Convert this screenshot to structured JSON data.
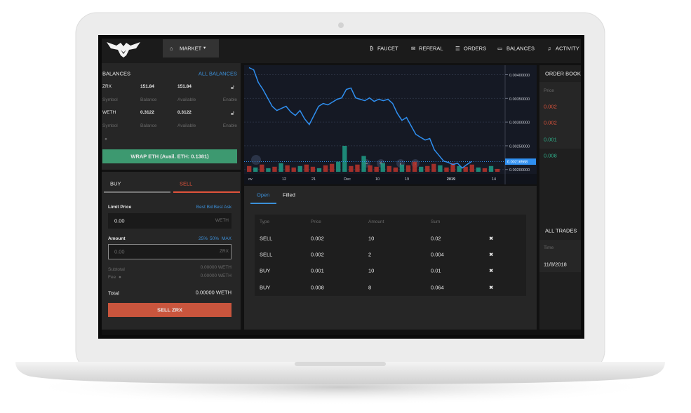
{
  "nav": {
    "market": "MARKET",
    "items": [
      "FAUCET",
      "REFERAL",
      "ORDERS",
      "BALANCES",
      "ACTIVITY"
    ]
  },
  "balances": {
    "title": "BALANCES",
    "link": "ALL BALANCES",
    "columns": [
      "Symbol",
      "Balance",
      "Available",
      "Enable"
    ],
    "rows": [
      {
        "symbol": "ZRX",
        "balance": "151.84",
        "available": "151.84"
      },
      {
        "symbol": "WETH",
        "balance": "0.3122",
        "available": "0.3122"
      }
    ],
    "wrap_button": "WRAP ETH (Avail. ETH: 0.1381)"
  },
  "trade_form": {
    "tabs": [
      "BUY",
      "SELL"
    ],
    "limit_price": "Limit Price",
    "best_bid": "Best Bid",
    "best_ask": "Best Ask",
    "price_value": "0.00",
    "price_unit": "WETH",
    "amount": "Amount",
    "shortcuts": [
      "25%",
      "50%",
      "MAX"
    ],
    "amount_value": "0.00",
    "amount_unit": "ZRX",
    "subtotal": "Subtotal",
    "subtotal_value": "0.00000 WETH",
    "fee": "Fee",
    "fee_value": "0.00000 WETH",
    "total": "Total",
    "total_value": "0.00000 WETH",
    "submit": "SELL ZRX"
  },
  "chart_data": {
    "type": "line",
    "color": "#2f8ff0",
    "up_color": "#1f9c86",
    "down_color": "#b8342c",
    "values": [
      0.004148,
      0.004104,
      0.003837,
      0.003689,
      0.003511,
      0.003333,
      0.003244,
      0.003289,
      0.003333,
      0.003215,
      0.003141,
      0.003244,
      0.003067,
      0.002948,
      0.003141,
      0.003333,
      0.003393,
      0.003363,
      0.003422,
      0.003481,
      0.003511,
      0.003689,
      0.003719,
      0.003511,
      0.003481,
      0.003452,
      0.003511,
      0.003437,
      0.003481,
      0.003452,
      0.003481,
      0.003393,
      0.003185,
      0.003037,
      0.003096,
      0.002919,
      0.002741,
      0.002681,
      0.002622,
      0.002652,
      0.002415,
      0.002296,
      0.002178,
      0.002148,
      0.002104,
      0.002133,
      0.00203,
      0.002104,
      0.00216568
    ],
    "volume_up": [
      null,
      6,
      null,
      5,
      null,
      12,
      null,
      null,
      8,
      null,
      null,
      5,
      null,
      null,
      14,
      36,
      null,
      null,
      22,
      null,
      null,
      12,
      null,
      null,
      10,
      null,
      null,
      7,
      null,
      null,
      9,
      null,
      null,
      8,
      null,
      null,
      6,
      null,
      8,
      null
    ],
    "volume_down": [
      8,
      null,
      10,
      null,
      7,
      null,
      9,
      6,
      null,
      10,
      7,
      null,
      9,
      11,
      null,
      null,
      8,
      10,
      null,
      9,
      7,
      null,
      8,
      6,
      null,
      9,
      14,
      null,
      8,
      11,
      null,
      6,
      12,
      null,
      7,
      10,
      null,
      5,
      null,
      4
    ],
    "x_labels": [
      "ov",
      "12",
      "21",
      "Dec",
      "10",
      "19",
      "2019",
      "14"
    ],
    "ylim": [
      0.0017,
      0.0042
    ],
    "yticks": [
      {
        "value": 0.004,
        "label": "0.00400000"
      },
      {
        "value": 0.0035,
        "label": "0.00350000"
      },
      {
        "value": 0.003,
        "label": "0.00300000"
      },
      {
        "value": 0.0025,
        "label": "0.00250000"
      },
      {
        "value": 0.002,
        "label": "0.00200000"
      }
    ],
    "last_price": 0.00216568,
    "grid": true
  },
  "orders": {
    "tabs": [
      "Open",
      "Filled"
    ],
    "columns": [
      "Type",
      "Price",
      "Amount",
      "Sum"
    ],
    "rows": [
      [
        "SELL",
        "0.002",
        "10",
        "0.02"
      ],
      [
        "SELL",
        "0.002",
        "2",
        "0.004"
      ],
      [
        "BUY",
        "0.001",
        "10",
        "0.01"
      ],
      [
        "BUY",
        "0.008",
        "8",
        "0.064"
      ]
    ]
  },
  "order_book": {
    "title": "ORDER BOOK",
    "column": "Price",
    "rows": [
      "0.002",
      "0.002",
      "0.001",
      "0.008"
    ]
  },
  "all_trades": {
    "title": "ALL TRADES",
    "column": "Time",
    "rows": [
      "11/8/2018"
    ]
  }
}
